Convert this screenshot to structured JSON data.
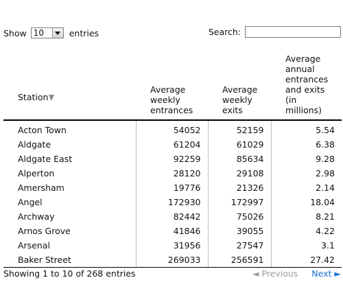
{
  "length_control": {
    "show_label": "Show",
    "selected": "10",
    "entries_label": "entries"
  },
  "search": {
    "label": "Search:",
    "value": ""
  },
  "table": {
    "columns": [
      "Station",
      "Average weekly entrances",
      "Average weekly exits",
      "Average annual entrances and exits (in millions)"
    ],
    "rows": [
      [
        "Acton Town",
        "54052",
        "52159",
        "5.54"
      ],
      [
        "Aldgate",
        "61204",
        "61029",
        "6.38"
      ],
      [
        "Aldgate East",
        "92259",
        "85634",
        "9.28"
      ],
      [
        "Alperton",
        "28120",
        "29108",
        "2.98"
      ],
      [
        "Amersham",
        "19776",
        "21326",
        "2.14"
      ],
      [
        "Angel",
        "172930",
        "172997",
        "18.04"
      ],
      [
        "Archway",
        "82442",
        "75026",
        "8.21"
      ],
      [
        "Arnos Grove",
        "41846",
        "39055",
        "4.22"
      ],
      [
        "Arsenal",
        "31956",
        "27547",
        "3.1"
      ],
      [
        "Baker Street",
        "269033",
        "256591",
        "27.42"
      ]
    ]
  },
  "footer": {
    "info": "Showing 1 to 10 of 268 entries",
    "previous": "◄ Previous",
    "next": "Next ►"
  },
  "icons": {
    "sort": "sort-descending-icon",
    "dropdown": "chevron-down-icon"
  }
}
